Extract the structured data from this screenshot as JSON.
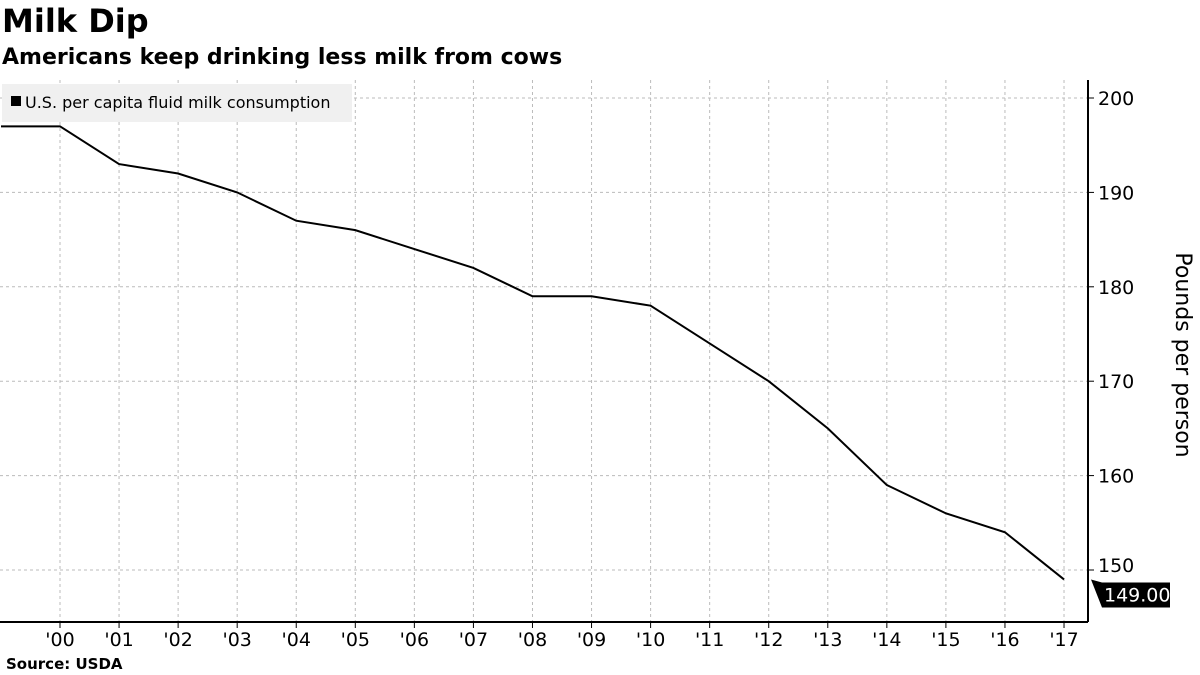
{
  "title": "Milk Dip",
  "subtitle": "Americans keep drinking less milk from cows",
  "source": "Source: USDA",
  "chart_data": {
    "type": "line",
    "title": "Milk Dip",
    "subtitle": "Americans keep drinking less milk from cows",
    "xlabel": "",
    "ylabel": "Pounds per person",
    "x": [
      1999,
      2000,
      2001,
      2002,
      2003,
      2004,
      2005,
      2006,
      2007,
      2008,
      2009,
      2010,
      2011,
      2012,
      2013,
      2014,
      2015,
      2016,
      2017
    ],
    "series": [
      {
        "name": "U.S. per capita fluid milk consumption",
        "color": "#000000",
        "values": [
          197,
          197,
          193,
          192,
          190,
          187,
          186,
          184,
          182,
          179,
          179,
          178,
          174,
          170,
          165,
          159,
          156,
          154,
          149
        ]
      }
    ],
    "x_ticks": [
      "'00",
      "'01",
      "'02",
      "'03",
      "'04",
      "'05",
      "'06",
      "'07",
      "'08",
      "'09",
      "'10",
      "'11",
      "'12",
      "'13",
      "'14",
      "'15",
      "'16",
      "'17"
    ],
    "y_ticks": [
      "150",
      "160",
      "170",
      "180",
      "190",
      "200"
    ],
    "ylim": [
      144.5,
      202
    ],
    "xlim": [
      1999,
      2018.4
    ],
    "last_value_label": "149.00",
    "grid": true,
    "legend_position": "top-left",
    "y_axis_side": "right"
  }
}
